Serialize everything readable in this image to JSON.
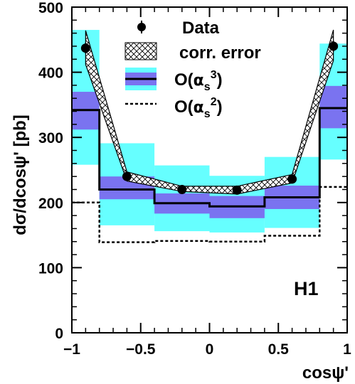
{
  "chart_data": {
    "type": "line",
    "xlabel": "cosψ'",
    "ylabel": "dσ/dcosψ' [pb]",
    "xlim": [
      -1,
      1
    ],
    "ylim": [
      0,
      500
    ],
    "x_ticks": [
      -1,
      -0.5,
      0,
      0.5,
      1
    ],
    "x_tick_labels": [
      "−1",
      "−0.5",
      "0",
      "0.5",
      "1"
    ],
    "y_ticks": [
      0,
      100,
      200,
      300,
      400,
      500
    ],
    "y_tick_labels": [
      "0",
      "100",
      "200",
      "300",
      "400",
      "500"
    ],
    "experiment_label": "H1",
    "legend_position": "top-center",
    "legend": {
      "data": "Data",
      "corr_error": "corr. error",
      "nlo_prefix": "O(",
      "nlo_alpha": "α",
      "nlo_sub": "s",
      "nlo_sup": "3",
      "nlo_suffix": ")",
      "lo_prefix": "O(",
      "lo_alpha": "α",
      "lo_sub": "s",
      "lo_sup": "2",
      "lo_suffix": ")"
    },
    "colors": {
      "outer_band": "#66ffff",
      "inner_band": "#7a73f0",
      "line": "#000000",
      "points": "#000000"
    },
    "data": {
      "name": "Data",
      "x": [
        -0.9,
        -0.6,
        -0.2,
        0.2,
        0.6,
        0.9
      ],
      "y": [
        437,
        240,
        220,
        219,
        236,
        440
      ],
      "stat_err": [
        8,
        5,
        4,
        4,
        5,
        8
      ]
    },
    "corr_error_band": {
      "x": [
        -0.9,
        -0.6,
        -0.2,
        0.2,
        0.6,
        0.9
      ],
      "low": [
        412,
        233,
        217,
        213,
        230,
        418
      ],
      "high": [
        464,
        247,
        225,
        225,
        243,
        465
      ]
    },
    "nlo_prediction": {
      "name": "O(αs3)",
      "bins": [
        [
          -1,
          -0.8
        ],
        [
          -0.8,
          -0.4
        ],
        [
          -0.4,
          0
        ],
        [
          0,
          0.4
        ],
        [
          0.4,
          0.8
        ],
        [
          0.8,
          1
        ]
      ],
      "central": [
        342,
        220,
        199,
        194,
        208,
        345
      ],
      "inner_low": [
        312,
        205,
        183,
        176,
        190,
        314
      ],
      "inner_high": [
        370,
        240,
        214,
        210,
        226,
        379
      ],
      "outer_low": [
        258,
        165,
        156,
        154,
        161,
        266
      ],
      "outer_high": [
        465,
        291,
        257,
        241,
        270,
        444
      ]
    },
    "lo_prediction": {
      "name": "O(αs2)",
      "bins": [
        [
          -1,
          -0.8
        ],
        [
          -0.8,
          -0.4
        ],
        [
          -0.4,
          0
        ],
        [
          0,
          0.4
        ],
        [
          0.4,
          0.8
        ],
        [
          0.8,
          1
        ]
      ],
      "values": [
        200,
        139,
        141,
        140,
        149,
        224
      ]
    }
  }
}
